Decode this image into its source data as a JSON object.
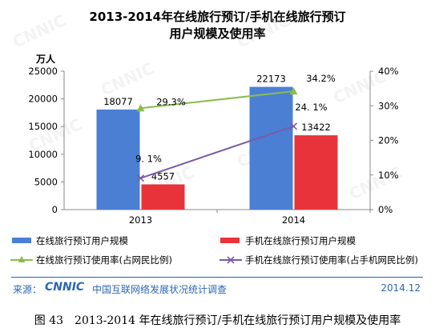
{
  "title_line1": "2013-2014年在线旅行预订/手机在线旅行预订",
  "title_line2": "用户规模及使用率",
  "chart_data": {
    "type": "bar",
    "categories": [
      "2013",
      "2014"
    ],
    "y_left_unit": "万人",
    "y_left_ticks": [
      "0",
      "5000",
      "10000",
      "15000",
      "20000",
      "25000"
    ],
    "y_left_lim": [
      0,
      25000
    ],
    "y_right_ticks": [
      "0%",
      "10%",
      "20%",
      "30%",
      "40%"
    ],
    "y_right_lim": [
      0,
      40
    ],
    "bar_series": [
      {
        "name": "在线旅行预订用户规模",
        "values": [
          18077,
          22173
        ],
        "labels": [
          "18077",
          "22173"
        ],
        "color": "#4a7fd4"
      },
      {
        "name": "手机在线旅行预订用户规模",
        "values": [
          4557,
          13422
        ],
        "labels": [
          "4557",
          "13422"
        ],
        "color": "#e8333a"
      }
    ],
    "line_series": [
      {
        "name": "在线旅行预订使用率(占网民比例)",
        "values": [
          29.3,
          34.2
        ],
        "labels": [
          "29.3%",
          "34.2%"
        ],
        "color": "#8bbd4a",
        "marker": "triangle"
      },
      {
        "name": "手机在线旅行预订使用率(占手机网民比例)",
        "values": [
          9.1,
          24.1
        ],
        "labels": [
          "9. 1%",
          "24. 1%"
        ],
        "color": "#7b5aa6",
        "marker": "x"
      }
    ],
    "grid": false,
    "legend_position": "bottom"
  },
  "source_label": "来源：",
  "source_text": "中国互联网络发展状况统计调查",
  "source_date": "2014.12",
  "logo_text": "CNNIC",
  "watermark_text": "CNNIC",
  "caption": "图 43　2013-2014 年在线旅行预订/手机在线旅行预订用户规模及使用率"
}
